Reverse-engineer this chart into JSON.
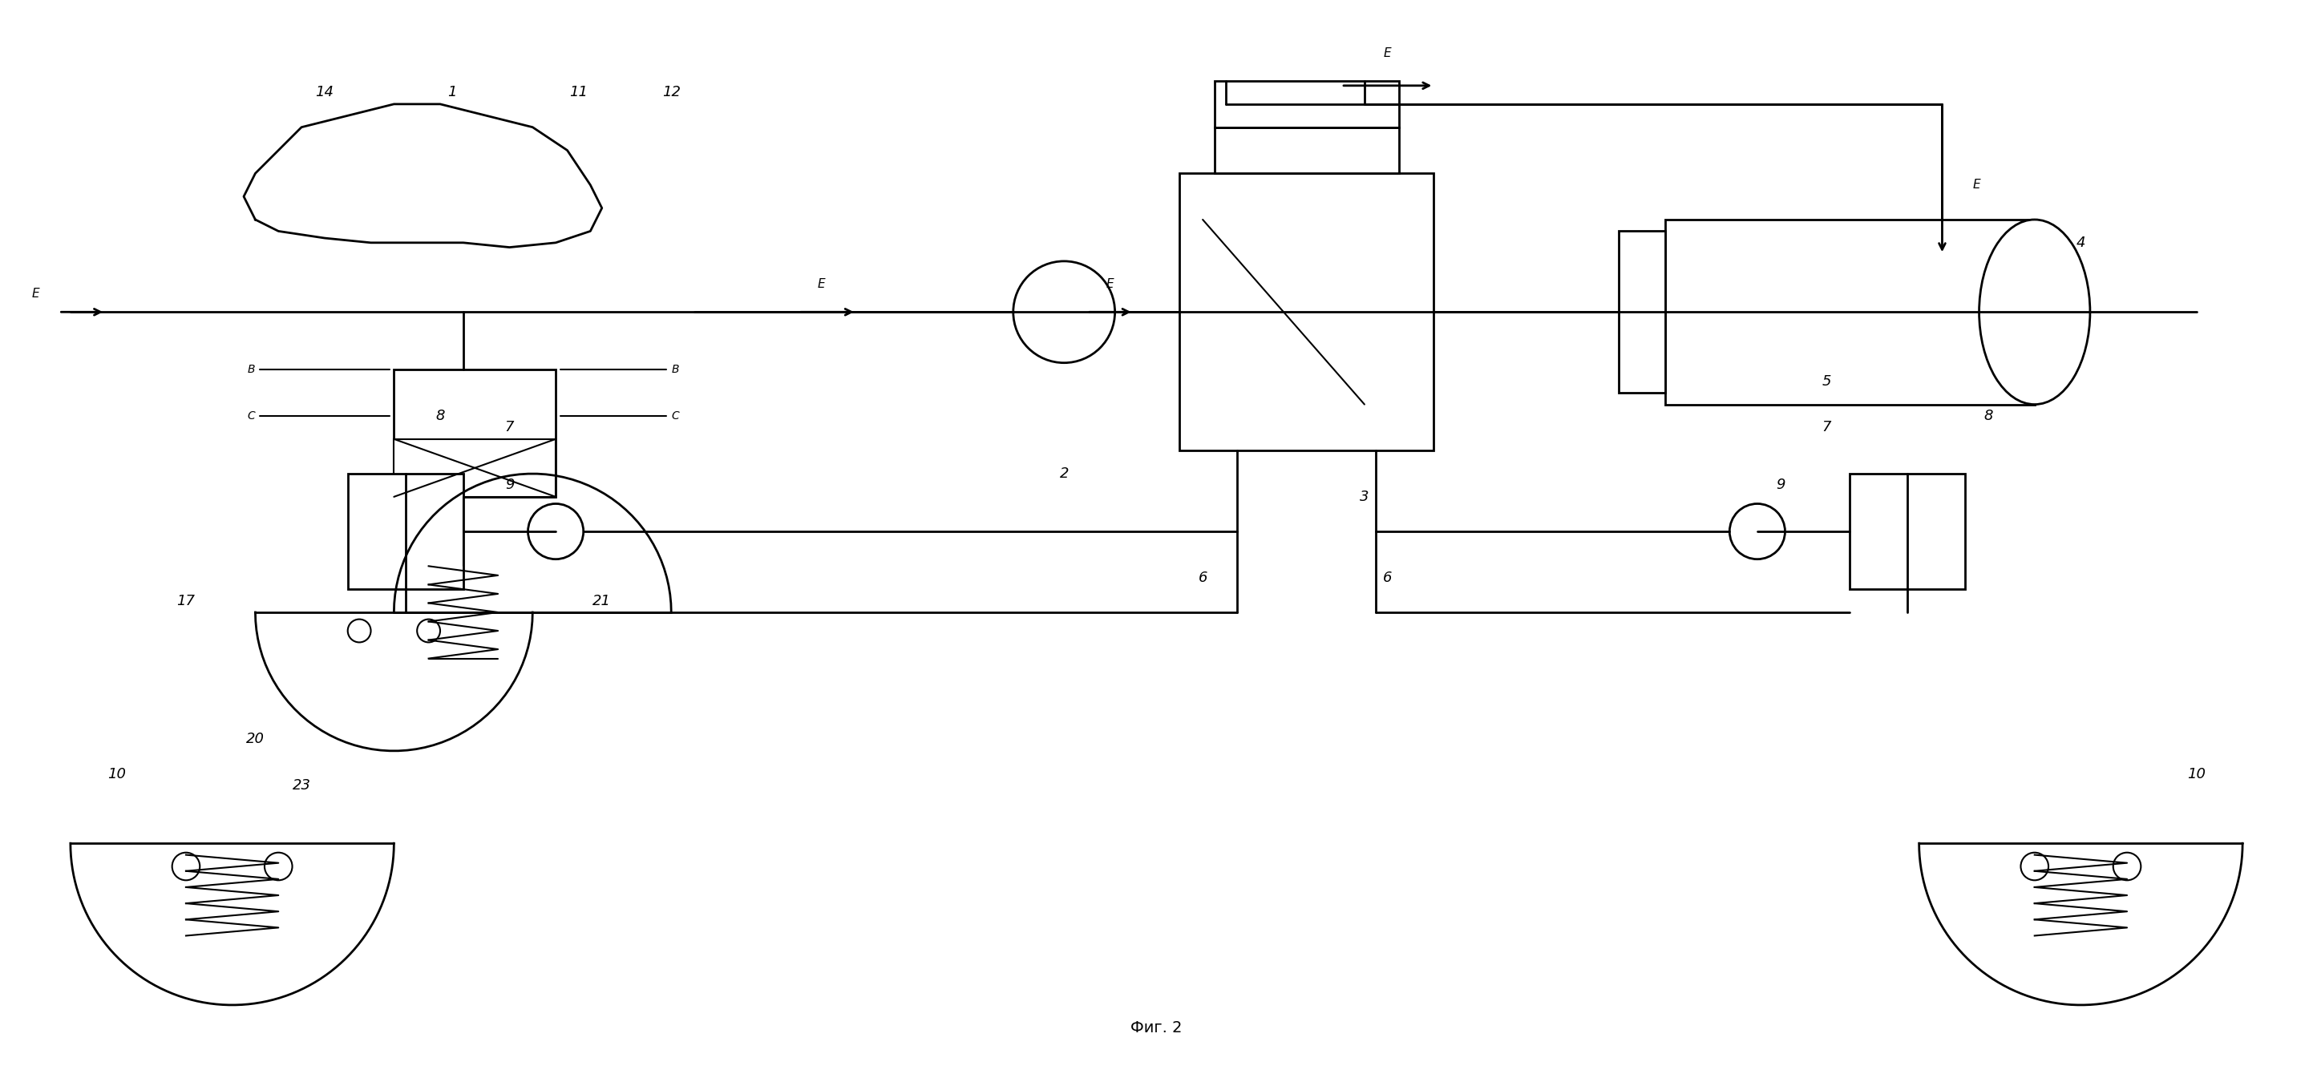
{
  "title": "Фиг. 2",
  "bg_color": "#ffffff",
  "line_color": "#000000",
  "fig_width": 28.85,
  "fig_height": 13.55,
  "labels": {
    "E_left": "E",
    "E_middle": "E",
    "E_top": "E",
    "E_right": "E",
    "B_left": "B",
    "B_right": "B",
    "C_left": "C",
    "C_right": "C",
    "num_1": "1",
    "num_2": "2",
    "num_3": "3",
    "num_4": "4",
    "num_5": "5",
    "num_6a": "6",
    "num_6b": "6",
    "num_7a": "7",
    "num_7b": "7",
    "num_8a": "8",
    "num_8b": "8",
    "num_9a": "9",
    "num_9b": "9",
    "num_10a": "10",
    "num_10b": "10",
    "num_11": "11",
    "num_12": "12",
    "num_14": "14",
    "num_17": "17",
    "num_20": "20",
    "num_21": "21",
    "num_23": "23"
  }
}
